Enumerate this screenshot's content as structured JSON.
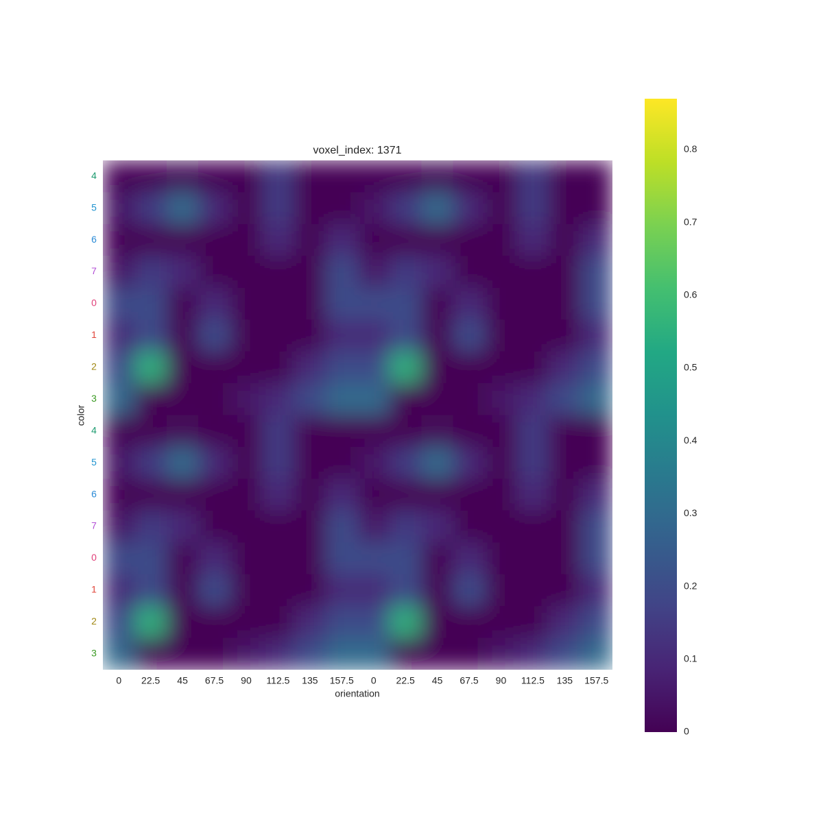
{
  "chart_data": {
    "type": "heatmap",
    "title": "voxel_index: 1371",
    "xlabel": "orientation",
    "ylabel": "color",
    "x": [
      0,
      22.5,
      45,
      67.5,
      90,
      112.5,
      135,
      157.5,
      0,
      22.5,
      45,
      67.5,
      90,
      112.5,
      135,
      157.5
    ],
    "y": [
      4,
      5,
      6,
      7,
      0,
      1,
      2,
      3,
      4,
      5,
      6,
      7,
      0,
      1,
      2,
      3
    ],
    "ytick_colors": [
      "#1a9a6e",
      "#1f93cf",
      "#2a8ad6",
      "#b34fd6",
      "#e0407a",
      "#e0453a",
      "#a08712",
      "#3a9a22",
      "#1a9a6e",
      "#1f93cf",
      "#2a8ad6",
      "#b34fd6",
      "#e0407a",
      "#e0453a",
      "#a08712",
      "#3a9a22"
    ],
    "values": [
      [
        0,
        0,
        0.02,
        0,
        0,
        0.15,
        0,
        0,
        0,
        0,
        0.02,
        0,
        0,
        0.15,
        0,
        0
      ],
      [
        0.05,
        0.15,
        0.3,
        0.1,
        0,
        0.15,
        0,
        0,
        0.05,
        0.15,
        0.3,
        0.1,
        0,
        0.15,
        0,
        0
      ],
      [
        0,
        0,
        0,
        0,
        0,
        0.1,
        0,
        0.1,
        0,
        0,
        0,
        0,
        0,
        0.1,
        0,
        0.1
      ],
      [
        0.05,
        0.15,
        0.1,
        0,
        0,
        0,
        0,
        0.2,
        0.05,
        0.15,
        0.1,
        0,
        0,
        0,
        0,
        0.2
      ],
      [
        0.2,
        0.2,
        0,
        0.1,
        0,
        0,
        0,
        0.2,
        0.2,
        0.2,
        0,
        0.1,
        0,
        0,
        0,
        0.2
      ],
      [
        0.1,
        0.2,
        0,
        0.2,
        0,
        0,
        0,
        0.1,
        0.1,
        0.2,
        0,
        0.2,
        0,
        0,
        0,
        0.1
      ],
      [
        0.2,
        0.55,
        0,
        0,
        0,
        0,
        0.1,
        0.2,
        0.2,
        0.55,
        0,
        0,
        0,
        0,
        0.1,
        0.2
      ],
      [
        0.3,
        0,
        0,
        0,
        0.05,
        0.1,
        0.2,
        0.3,
        0.3,
        0,
        0,
        0,
        0.05,
        0.1,
        0.2,
        0.3
      ],
      [
        0,
        0,
        0.02,
        0,
        0,
        0.15,
        0,
        0,
        0,
        0,
        0.02,
        0,
        0,
        0.15,
        0,
        0
      ],
      [
        0.05,
        0.15,
        0.3,
        0.1,
        0,
        0.15,
        0,
        0,
        0.05,
        0.15,
        0.3,
        0.1,
        0,
        0.15,
        0,
        0
      ],
      [
        0,
        0,
        0,
        0,
        0,
        0.1,
        0,
        0.1,
        0,
        0,
        0,
        0,
        0,
        0.1,
        0,
        0.1
      ],
      [
        0.05,
        0.15,
        0.1,
        0,
        0,
        0,
        0,
        0.2,
        0.05,
        0.15,
        0.1,
        0,
        0,
        0,
        0,
        0.2
      ],
      [
        0.2,
        0.2,
        0,
        0.1,
        0,
        0,
        0,
        0.2,
        0.2,
        0.2,
        0,
        0.1,
        0,
        0,
        0,
        0.2
      ],
      [
        0.1,
        0.2,
        0,
        0.2,
        0,
        0,
        0,
        0.1,
        0.1,
        0.2,
        0,
        0.2,
        0,
        0,
        0,
        0.1
      ],
      [
        0.2,
        0.55,
        0,
        0,
        0,
        0,
        0.1,
        0.2,
        0.2,
        0.55,
        0,
        0,
        0,
        0,
        0.1,
        0.2
      ],
      [
        0.3,
        0,
        0,
        0,
        0.05,
        0.1,
        0.2,
        0.3,
        0.3,
        0,
        0,
        0,
        0.05,
        0.1,
        0.2,
        0.3
      ]
    ],
    "colormap": "viridis",
    "zlim": [
      0,
      0.87
    ],
    "zticks": [
      0,
      0.1,
      0.2,
      0.3,
      0.4,
      0.5,
      0.6,
      0.7,
      0.8
    ]
  }
}
